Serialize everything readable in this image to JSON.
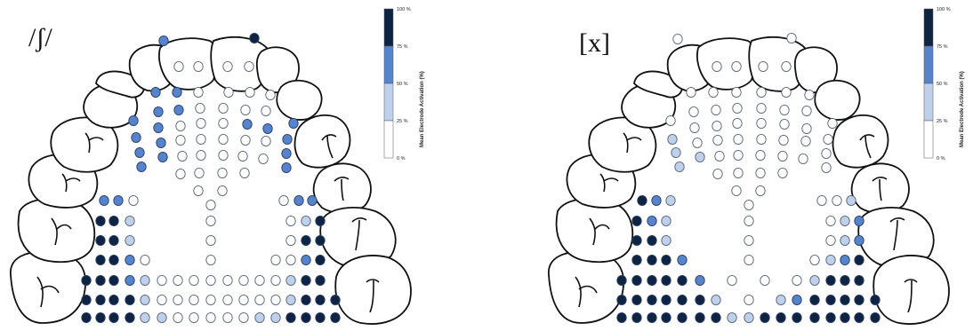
{
  "panels": [
    {
      "phoneme": "/ʃ/",
      "electrodes": [
        [
          184,
          46,
          3
        ],
        [
          286,
          43,
          4
        ],
        [
          201,
          75,
          0
        ],
        [
          223,
          75,
          0
        ],
        [
          256,
          75,
          0
        ],
        [
          280,
          75,
          0
        ],
        [
          175,
          104,
          3
        ],
        [
          199,
          104,
          3
        ],
        [
          223,
          104,
          0
        ],
        [
          257,
          104,
          0
        ],
        [
          281,
          104,
          0
        ],
        [
          304,
          107,
          0
        ],
        [
          178,
          126,
          3
        ],
        [
          201,
          124,
          3
        ],
        [
          225,
          122,
          0
        ],
        [
          251,
          122,
          0
        ],
        [
          276,
          124,
          0
        ],
        [
          299,
          125,
          0
        ],
        [
          150,
          136,
          3
        ],
        [
          178,
          144,
          3
        ],
        [
          203,
          142,
          0
        ],
        [
          226,
          139,
          0
        ],
        [
          251,
          139,
          0
        ],
        [
          278,
          140,
          3
        ],
        [
          301,
          145,
          3
        ],
        [
          330,
          139,
          3
        ],
        [
          153,
          155,
          3
        ],
        [
          181,
          161,
          3
        ],
        [
          203,
          158,
          0
        ],
        [
          226,
          157,
          0
        ],
        [
          251,
          157,
          0
        ],
        [
          276,
          158,
          0
        ],
        [
          299,
          159,
          0
        ],
        [
          323,
          157,
          3
        ],
        [
          157,
          172,
          3
        ],
        [
          183,
          177,
          3
        ],
        [
          205,
          176,
          0
        ],
        [
          226,
          175,
          0
        ],
        [
          251,
          175,
          0
        ],
        [
          273,
          176,
          0
        ],
        [
          296,
          179,
          0
        ],
        [
          322,
          173,
          3
        ],
        [
          159,
          188,
          3
        ],
        [
          203,
          196,
          0
        ],
        [
          224,
          195,
          0
        ],
        [
          250,
          195,
          0
        ],
        [
          275,
          195,
          0
        ],
        [
          322,
          189,
          3
        ],
        [
          223,
          215,
          0
        ],
        [
          250,
          215,
          0
        ],
        [
          117,
          226,
          3
        ],
        [
          133,
          226,
          3
        ],
        [
          150,
          226,
          0
        ],
        [
          237,
          231,
          0
        ],
        [
          319,
          226,
          0
        ],
        [
          336,
          226,
          3
        ],
        [
          351,
          226,
          3
        ],
        [
          113,
          249,
          4
        ],
        [
          128,
          249,
          4
        ],
        [
          146,
          249,
          2
        ],
        [
          237,
          249,
          0
        ],
        [
          327,
          249,
          0
        ],
        [
          344,
          249,
          2
        ],
        [
          360,
          249,
          4
        ],
        [
          113,
          271,
          4
        ],
        [
          128,
          271,
          4
        ],
        [
          146,
          271,
          2
        ],
        [
          237,
          271,
          0
        ],
        [
          327,
          271,
          0
        ],
        [
          344,
          271,
          4
        ],
        [
          360,
          271,
          4
        ],
        [
          113,
          293,
          4
        ],
        [
          128,
          293,
          4
        ],
        [
          146,
          293,
          3
        ],
        [
          163,
          293,
          0
        ],
        [
          237,
          293,
          0
        ],
        [
          310,
          293,
          0
        ],
        [
          327,
          293,
          0
        ],
        [
          344,
          293,
          3
        ],
        [
          360,
          293,
          4
        ],
        [
          97,
          316,
          4
        ],
        [
          113,
          316,
          4
        ],
        [
          128,
          316,
          4
        ],
        [
          146,
          316,
          3
        ],
        [
          163,
          316,
          2
        ],
        [
          182,
          316,
          0
        ],
        [
          200,
          316,
          0
        ],
        [
          218,
          316,
          0
        ],
        [
          237,
          316,
          0
        ],
        [
          256,
          316,
          0
        ],
        [
          274,
          316,
          0
        ],
        [
          292,
          316,
          0
        ],
        [
          310,
          316,
          0
        ],
        [
          327,
          316,
          2
        ],
        [
          344,
          316,
          4
        ],
        [
          360,
          316,
          4
        ],
        [
          97,
          338,
          4
        ],
        [
          113,
          338,
          4
        ],
        [
          128,
          338,
          4
        ],
        [
          146,
          338,
          4
        ],
        [
          163,
          338,
          2
        ],
        [
          182,
          338,
          0
        ],
        [
          200,
          338,
          0
        ],
        [
          218,
          338,
          0
        ],
        [
          237,
          338,
          0
        ],
        [
          256,
          338,
          0
        ],
        [
          274,
          338,
          0
        ],
        [
          292,
          338,
          0
        ],
        [
          310,
          338,
          0
        ],
        [
          327,
          338,
          2
        ],
        [
          344,
          338,
          4
        ],
        [
          360,
          338,
          4
        ],
        [
          377,
          338,
          4
        ],
        [
          97,
          358,
          4
        ],
        [
          113,
          358,
          4
        ],
        [
          128,
          358,
          4
        ],
        [
          146,
          358,
          4
        ],
        [
          163,
          358,
          2
        ],
        [
          182,
          358,
          2
        ],
        [
          200,
          358,
          0
        ],
        [
          218,
          358,
          0
        ],
        [
          237,
          358,
          0
        ],
        [
          256,
          358,
          0
        ],
        [
          274,
          358,
          0
        ],
        [
          292,
          358,
          2
        ],
        [
          310,
          358,
          2
        ],
        [
          327,
          358,
          4
        ],
        [
          344,
          358,
          4
        ],
        [
          360,
          358,
          4
        ],
        [
          377,
          358,
          4
        ]
      ]
    },
    {
      "phoneme": "[x]",
      "electrodes": [
        [
          762,
          44,
          0
        ],
        [
          890,
          43,
          0
        ],
        [
          806,
          75,
          0
        ],
        [
          828,
          75,
          0
        ],
        [
          858,
          75,
          0
        ],
        [
          884,
          75,
          0
        ],
        [
          777,
          104,
          0
        ],
        [
          802,
          104,
          0
        ],
        [
          828,
          104,
          0
        ],
        [
          856,
          104,
          0
        ],
        [
          884,
          104,
          0
        ],
        [
          910,
          107,
          0
        ],
        [
          780,
          126,
          0
        ],
        [
          805,
          124,
          0
        ],
        [
          829,
          122,
          0
        ],
        [
          856,
          122,
          0
        ],
        [
          882,
          124,
          0
        ],
        [
          907,
          125,
          0
        ],
        [
          754,
          136,
          0
        ],
        [
          781,
          144,
          0
        ],
        [
          806,
          142,
          0
        ],
        [
          829,
          139,
          0
        ],
        [
          856,
          139,
          0
        ],
        [
          882,
          140,
          0
        ],
        [
          907,
          145,
          0
        ],
        [
          936,
          139,
          0
        ],
        [
          756,
          157,
          2
        ],
        [
          784,
          161,
          0
        ],
        [
          807,
          158,
          0
        ],
        [
          830,
          157,
          0
        ],
        [
          856,
          157,
          0
        ],
        [
          881,
          158,
          0
        ],
        [
          906,
          159,
          0
        ],
        [
          931,
          157,
          0
        ],
        [
          760,
          172,
          2
        ],
        [
          787,
          177,
          2
        ],
        [
          809,
          176,
          0
        ],
        [
          830,
          175,
          0
        ],
        [
          855,
          175,
          0
        ],
        [
          880,
          176,
          0
        ],
        [
          903,
          179,
          0
        ],
        [
          929,
          173,
          0
        ],
        [
          764,
          188,
          2
        ],
        [
          807,
          196,
          0
        ],
        [
          830,
          195,
          0
        ],
        [
          855,
          195,
          0
        ],
        [
          880,
          195,
          0
        ],
        [
          929,
          189,
          0
        ],
        [
          828,
          215,
          0
        ],
        [
          855,
          215,
          0
        ],
        [
          722,
          226,
          4
        ],
        [
          738,
          226,
          3
        ],
        [
          754,
          226,
          2
        ],
        [
          842,
          231,
          0
        ],
        [
          924,
          226,
          0
        ],
        [
          941,
          226,
          0
        ],
        [
          957,
          226,
          2
        ],
        [
          716,
          249,
          4
        ],
        [
          733,
          249,
          3
        ],
        [
          749,
          249,
          2
        ],
        [
          842,
          249,
          0
        ],
        [
          934,
          249,
          0
        ],
        [
          950,
          249,
          2
        ],
        [
          966,
          249,
          3
        ],
        [
          716,
          271,
          4
        ],
        [
          733,
          271,
          4
        ],
        [
          749,
          271,
          2
        ],
        [
          842,
          271,
          0
        ],
        [
          934,
          271,
          0
        ],
        [
          950,
          271,
          2
        ],
        [
          966,
          271,
          3
        ],
        [
          716,
          293,
          4
        ],
        [
          733,
          293,
          4
        ],
        [
          749,
          293,
          4
        ],
        [
          767,
          293,
          3
        ],
        [
          842,
          293,
          0
        ],
        [
          916,
          293,
          0
        ],
        [
          934,
          293,
          2
        ],
        [
          950,
          293,
          3
        ],
        [
          966,
          293,
          4
        ],
        [
          699,
          316,
          4
        ],
        [
          716,
          316,
          4
        ],
        [
          733,
          316,
          4
        ],
        [
          749,
          316,
          4
        ],
        [
          767,
          316,
          4
        ],
        [
          787,
          316,
          3
        ],
        [
          823,
          316,
          0
        ],
        [
          860,
          316,
          0
        ],
        [
          896,
          316,
          0
        ],
        [
          916,
          316,
          2
        ],
        [
          934,
          316,
          4
        ],
        [
          950,
          316,
          4
        ],
        [
          966,
          316,
          4
        ],
        [
          699,
          338,
          4
        ],
        [
          716,
          338,
          4
        ],
        [
          733,
          338,
          4
        ],
        [
          749,
          338,
          4
        ],
        [
          767,
          338,
          4
        ],
        [
          787,
          338,
          4
        ],
        [
          805,
          338,
          2
        ],
        [
          842,
          338,
          0
        ],
        [
          878,
          338,
          2
        ],
        [
          896,
          338,
          3
        ],
        [
          916,
          338,
          4
        ],
        [
          934,
          338,
          4
        ],
        [
          950,
          338,
          4
        ],
        [
          966,
          338,
          4
        ],
        [
          984,
          338,
          4
        ],
        [
          699,
          358,
          4
        ],
        [
          716,
          358,
          4
        ],
        [
          733,
          358,
          4
        ],
        [
          749,
          358,
          4
        ],
        [
          767,
          358,
          4
        ],
        [
          787,
          358,
          4
        ],
        [
          805,
          358,
          4
        ],
        [
          823,
          358,
          2
        ],
        [
          842,
          358,
          2
        ],
        [
          860,
          358,
          4
        ],
        [
          878,
          358,
          4
        ],
        [
          896,
          358,
          4
        ],
        [
          916,
          358,
          4
        ],
        [
          934,
          358,
          4
        ],
        [
          950,
          358,
          4
        ],
        [
          966,
          358,
          4
        ],
        [
          984,
          358,
          4
        ]
      ]
    }
  ],
  "colorbar": {
    "title": "Mean Electrode Activation (%)",
    "ticks": [
      "100 %",
      "75 %",
      "50 %",
      "25 %",
      "0 %"
    ],
    "colors": [
      "#0f2442",
      "#5583cc",
      "#bed0ea",
      "#ffffff"
    ]
  },
  "electrode_level_colors": [
    "#ffffff",
    "#e3eaf5",
    "#bed0ea",
    "#5583cc",
    "#0f2442"
  ]
}
